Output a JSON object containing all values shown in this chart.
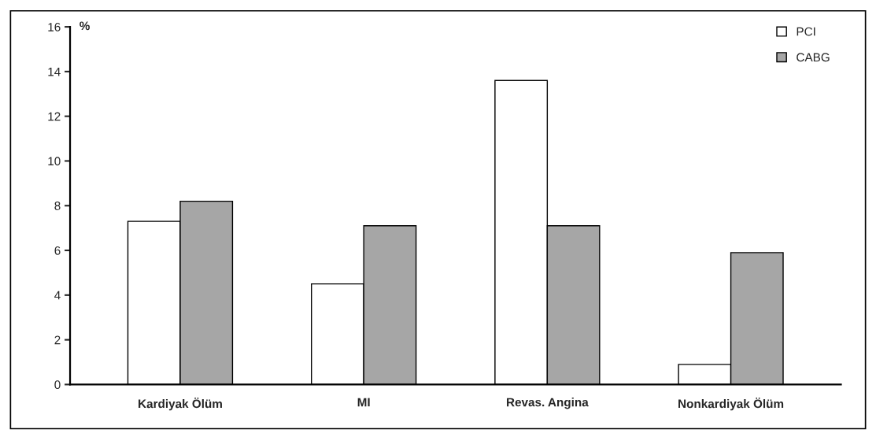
{
  "chart_data": {
    "type": "bar",
    "ylabel": "%",
    "categories": [
      "Kardiyak Ölüm",
      "MI",
      "Revas. Angina",
      "Nonkardiyak Ölüm"
    ],
    "series": [
      {
        "name": "PCI",
        "color": "#ffffff",
        "values": [
          7.3,
          4.5,
          13.6,
          0.9
        ]
      },
      {
        "name": "CABG",
        "color": "#a6a6a6",
        "values": [
          8.2,
          7.1,
          7.1,
          5.9
        ]
      }
    ],
    "ylim": [
      0,
      16
    ],
    "yticks": [
      0,
      2,
      4,
      6,
      8,
      10,
      12,
      14,
      16
    ],
    "grid": false,
    "legend": "top right"
  }
}
